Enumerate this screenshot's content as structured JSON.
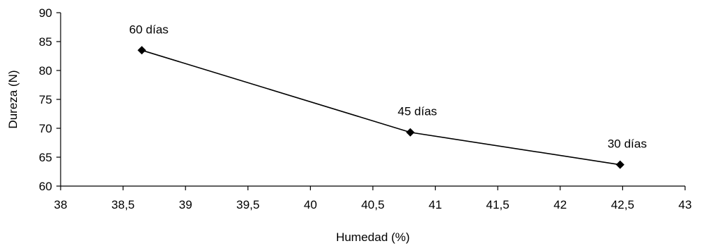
{
  "chart_data": {
    "type": "scatter",
    "xlabel": "Humedad  (%)",
    "ylabel": "Dureza  (N)",
    "xlim": [
      38,
      43
    ],
    "ylim": [
      60,
      90
    ],
    "xticks": [
      38,
      38.5,
      39,
      39.5,
      40,
      40.5,
      41,
      41.5,
      42,
      42.5,
      43
    ],
    "xtick_labels": [
      "38",
      "38,5",
      "39",
      "39,5",
      "40",
      "40,5",
      "41",
      "41,5",
      "42",
      "42,5",
      "43"
    ],
    "yticks": [
      60,
      65,
      70,
      75,
      80,
      85,
      90
    ],
    "ytick_labels": [
      "60",
      "65",
      "70",
      "75",
      "80",
      "85",
      "90"
    ],
    "grid": false,
    "marker": "diamond",
    "line": true,
    "series": [
      {
        "points": [
          {
            "x": 38.65,
            "y": 83.5,
            "label": "60 días"
          },
          {
            "x": 40.8,
            "y": 69.3,
            "label": "45 días"
          },
          {
            "x": 42.48,
            "y": 63.7,
            "label": "30 días"
          }
        ]
      }
    ],
    "colors": {
      "line": "#000000",
      "marker": "#000000",
      "axis": "#000000"
    }
  }
}
